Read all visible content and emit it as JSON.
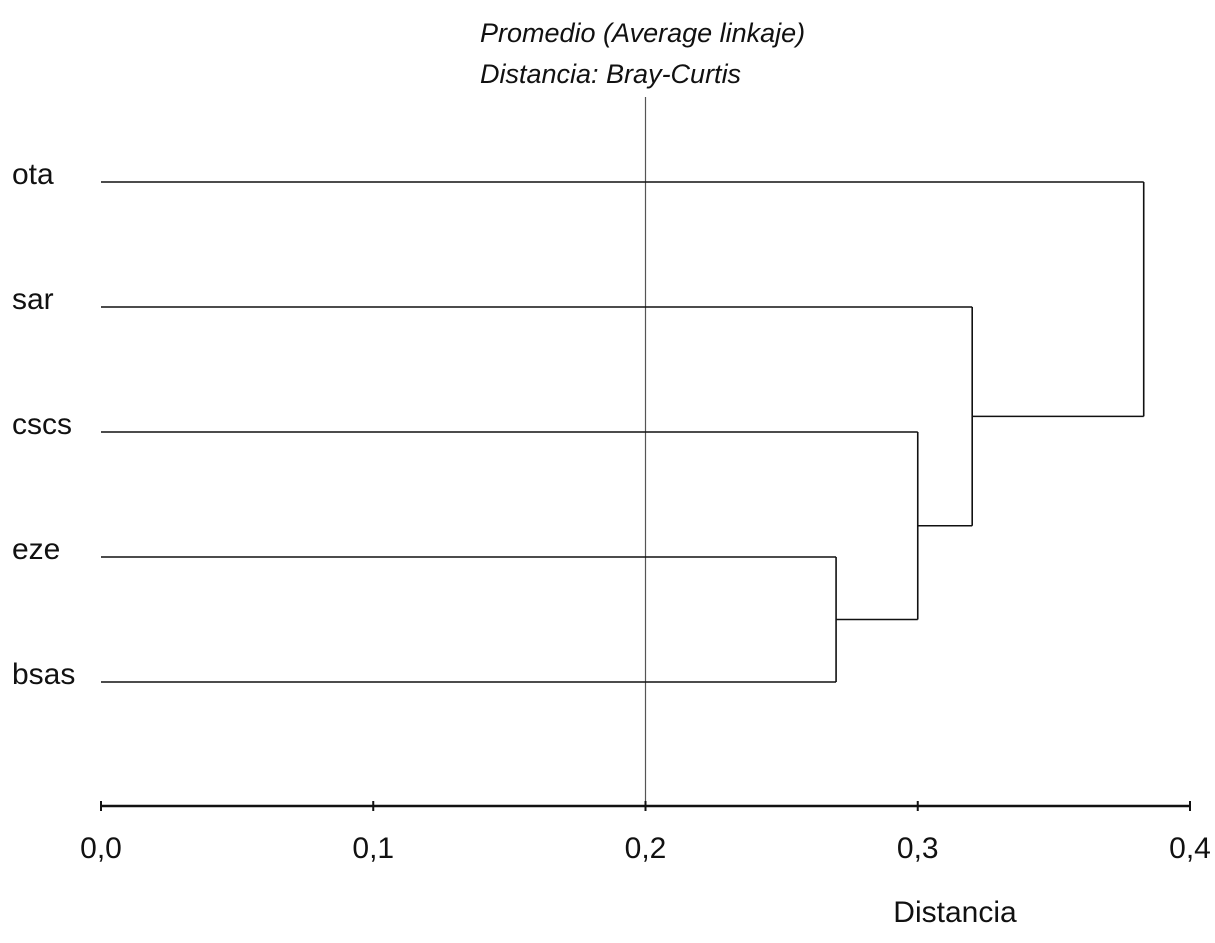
{
  "chart_data": {
    "type": "dendrogram",
    "method_line_1": "Promedio (Average linkaje)",
    "method_line_2": "Distancia:  Bray-Curtis",
    "xlabel": "Distancia",
    "xlim": [
      0,
      0.4
    ],
    "x_ticks": [
      "0,0",
      "0,1",
      "0,2",
      "0,3",
      "0,4"
    ],
    "reference_line": 0.2,
    "leaves": [
      "ota",
      "sar",
      "cscs",
      "eze",
      "bsas"
    ],
    "merges": [
      {
        "left": "eze",
        "right": "bsas",
        "height": 0.27
      },
      {
        "left": "cscs",
        "right": "eze+bsas",
        "height": 0.3
      },
      {
        "left": "sar",
        "right": "cscs+eze+bsas",
        "height": 0.32
      },
      {
        "left": "ota",
        "right": "sar+cscs+eze+bsas",
        "height": 0.383
      }
    ]
  }
}
